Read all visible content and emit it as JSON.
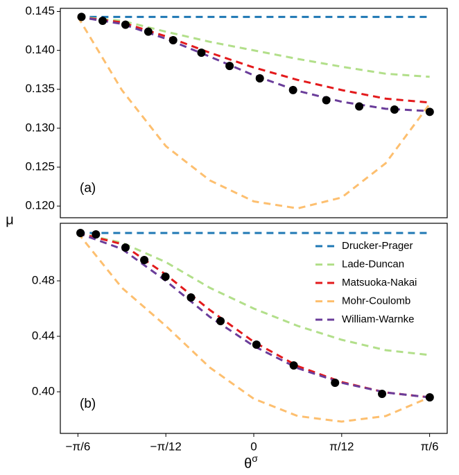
{
  "chart_data": [
    {
      "type": "line",
      "panel_label": "(a)",
      "ylabel": "μ",
      "xlim": [
        -0.576,
        0.576
      ],
      "ylim": [
        0.1185,
        0.1454
      ],
      "yticks": [
        {
          "value": 0.12,
          "label": "0.120"
        },
        0.125,
        {
          "value": 0.13,
          "label": "0.130"
        },
        0.135,
        {
          "value": 0.14,
          "label": "0.140"
        },
        0.145
      ],
      "x": [
        -0.5236,
        -0.3927,
        -0.2618,
        -0.1309,
        0,
        0.1309,
        0.2618,
        0.3927,
        0.5236
      ],
      "series": [
        {
          "name": "Drucker-Prager",
          "color": "#1f78b4",
          "values": [
            0.1443,
            0.1443,
            0.1443,
            0.1443,
            0.1443,
            0.1443,
            0.1443,
            0.1443,
            0.1443
          ]
        },
        {
          "name": "Lade-Duncan",
          "color": "#b2df8a",
          "values": [
            0.1443,
            0.1438,
            0.1424,
            0.1411,
            0.14,
            0.1389,
            0.1379,
            0.137,
            0.1366
          ]
        },
        {
          "name": "Matsuoka-Nakai",
          "color": "#e31a1c",
          "values": [
            0.1443,
            0.1436,
            0.1418,
            0.1397,
            0.1378,
            0.1362,
            0.1349,
            0.1338,
            0.1333
          ]
        },
        {
          "name": "Mohr-Coulomb",
          "color": "#fdbf6f",
          "values": [
            0.1443,
            0.1349,
            0.1277,
            0.1233,
            0.1206,
            0.1197,
            0.1211,
            0.1255,
            0.1331
          ]
        },
        {
          "name": "William-Warnke",
          "color": "#6a3d9a",
          "values": [
            0.1443,
            0.1434,
            0.1415,
            0.1392,
            0.1368,
            0.1348,
            0.1334,
            0.1325,
            0.1322
          ]
        }
      ],
      "markers": {
        "color": "#000000",
        "x": [
          -0.513,
          -0.45,
          -0.382,
          -0.314,
          -0.24,
          -0.156,
          -0.072,
          0.018,
          0.117,
          0.216,
          0.314,
          0.419,
          0.524
        ],
        "values": [
          0.1443,
          0.1438,
          0.1433,
          0.1424,
          0.1413,
          0.1397,
          0.138,
          0.1364,
          0.1349,
          0.1336,
          0.1328,
          0.1324,
          0.1321
        ]
      }
    },
    {
      "type": "line",
      "panel_label": "(b)",
      "xlabel": {
        "base": "θ",
        "sup": "σ"
      },
      "xlim": [
        -0.576,
        0.576
      ],
      "ylim": [
        0.37,
        0.5215
      ],
      "xticks": [
        {
          "value": -0.5236,
          "label": "−π/6"
        },
        {
          "value": -0.2618,
          "label": "−π/12"
        },
        0,
        {
          "value": 0.2618,
          "label": "π/12"
        },
        {
          "value": 0.5236,
          "label": "π/6"
        }
      ],
      "yticks": [
        {
          "value": 0.4,
          "label": "0.40"
        },
        0.44,
        0.48
      ],
      "legend": "upper right",
      "x": [
        -0.5236,
        -0.3927,
        -0.2618,
        -0.1309,
        0,
        0.1309,
        0.2618,
        0.3927,
        0.5236
      ],
      "series": [
        {
          "name": "Drucker-Prager",
          "color": "#1f78b4",
          "values": [
            0.5145,
            0.5145,
            0.5145,
            0.5145,
            0.5145,
            0.5145,
            0.5145,
            0.5145,
            0.5145
          ]
        },
        {
          "name": "Lade-Duncan",
          "color": "#b2df8a",
          "values": [
            0.5145,
            0.5075,
            0.4935,
            0.475,
            0.46,
            0.4475,
            0.4375,
            0.43,
            0.4265
          ]
        },
        {
          "name": "Matsuoka-Nakai",
          "color": "#e31a1c",
          "values": [
            0.5145,
            0.5065,
            0.4845,
            0.459,
            0.436,
            0.4185,
            0.407,
            0.3995,
            0.396
          ]
        },
        {
          "name": "Mohr-Coulomb",
          "color": "#fdbf6f",
          "values": [
            0.5145,
            0.475,
            0.4475,
            0.4175,
            0.395,
            0.3825,
            0.3785,
            0.3825,
            0.396
          ]
        },
        {
          "name": "William-Warnke",
          "color": "#6a3d9a",
          "values": [
            0.5145,
            0.503,
            0.48,
            0.454,
            0.433,
            0.417,
            0.4065,
            0.3995,
            0.396
          ]
        }
      ],
      "markers": {
        "color": "#000000",
        "x": [
          -0.516,
          -0.47,
          -0.382,
          -0.326,
          -0.263,
          -0.187,
          -0.099,
          0.008,
          0.119,
          0.242,
          0.382,
          0.524
        ],
        "values": [
          0.5145,
          0.5135,
          0.504,
          0.495,
          0.483,
          0.468,
          0.451,
          0.434,
          0.419,
          0.4065,
          0.3985,
          0.396
        ]
      }
    }
  ]
}
